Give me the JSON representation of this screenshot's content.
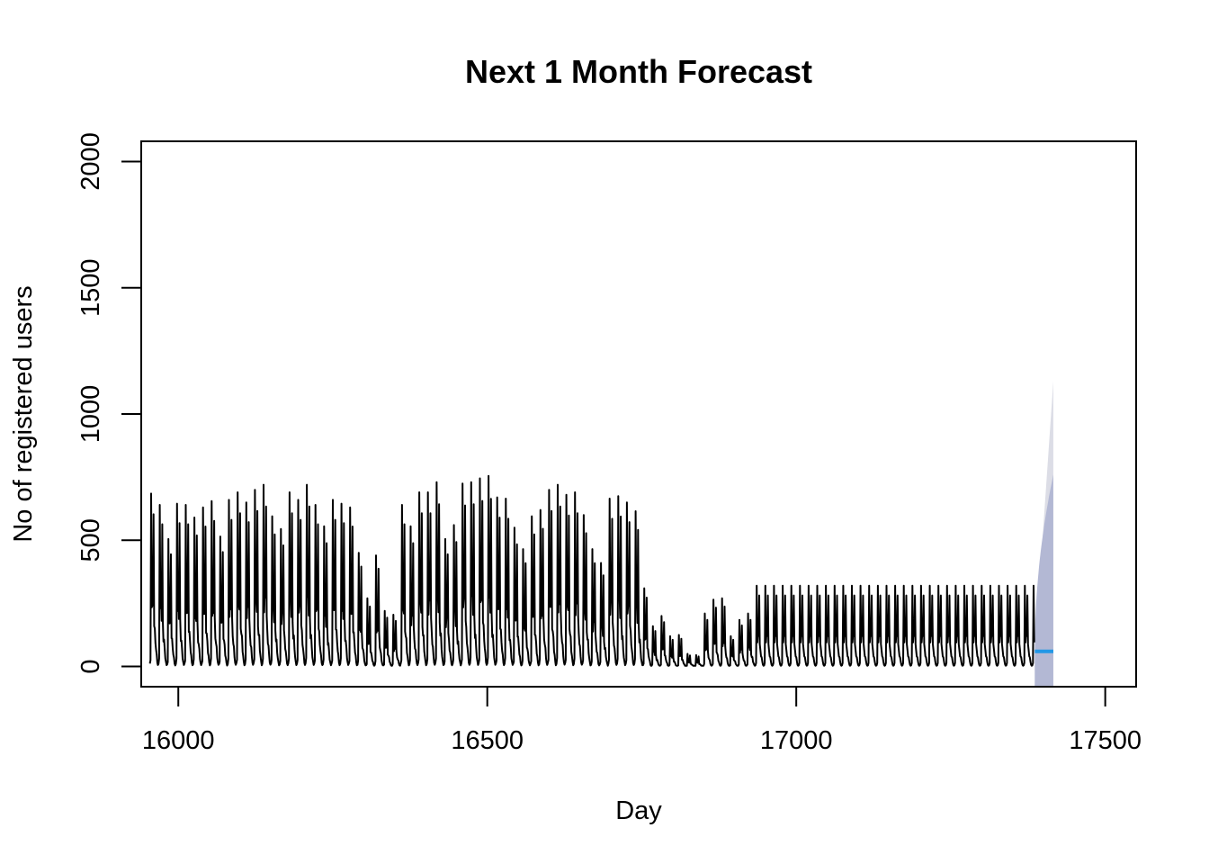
{
  "chart_data": {
    "type": "line",
    "title": "Next 1 Month Forecast",
    "xlabel": "Day",
    "ylabel": "No of registered users",
    "xlim": [
      15940,
      17550
    ],
    "ylim": [
      -80,
      2080
    ],
    "xticks": [
      16000,
      16500,
      17000,
      17500
    ],
    "yticks": [
      0,
      500,
      1000,
      1500,
      2000
    ],
    "grid": false,
    "observed": {
      "x_start": 15954,
      "x_end": 17385,
      "cycle_days": 14,
      "note_shape": "weekly spikes",
      "peak_values": [
        685,
        640,
        505,
        645,
        640,
        590,
        630,
        655,
        515,
        660,
        690,
        650,
        700,
        720,
        595,
        545,
        690,
        660,
        720,
        640,
        555,
        660,
        645,
        630,
        450,
        270,
        440,
        220,
        205,
        640,
        555,
        690,
        690,
        730,
        505,
        560,
        725,
        730,
        745,
        755,
        670,
        665,
        550,
        465,
        595,
        620,
        700,
        720,
        680,
        690,
        600,
        465,
        410,
        665,
        675,
        650,
        615,
        310,
        160,
        200,
        120,
        125,
        50,
        45,
        210,
        265,
        270,
        120,
        185,
        210,
        320
      ]
    },
    "forecast": {
      "x_start": 17386,
      "x_end": 17416,
      "point_forecast": 60,
      "lo80_end": -80,
      "hi80_end": 760,
      "lo95_end": -80,
      "hi95_end": 1130
    },
    "colors": {
      "line": "#000000",
      "forecast_line": "#2297e6",
      "band80": "#b3b8d4",
      "band95": "#dcdde6"
    }
  }
}
